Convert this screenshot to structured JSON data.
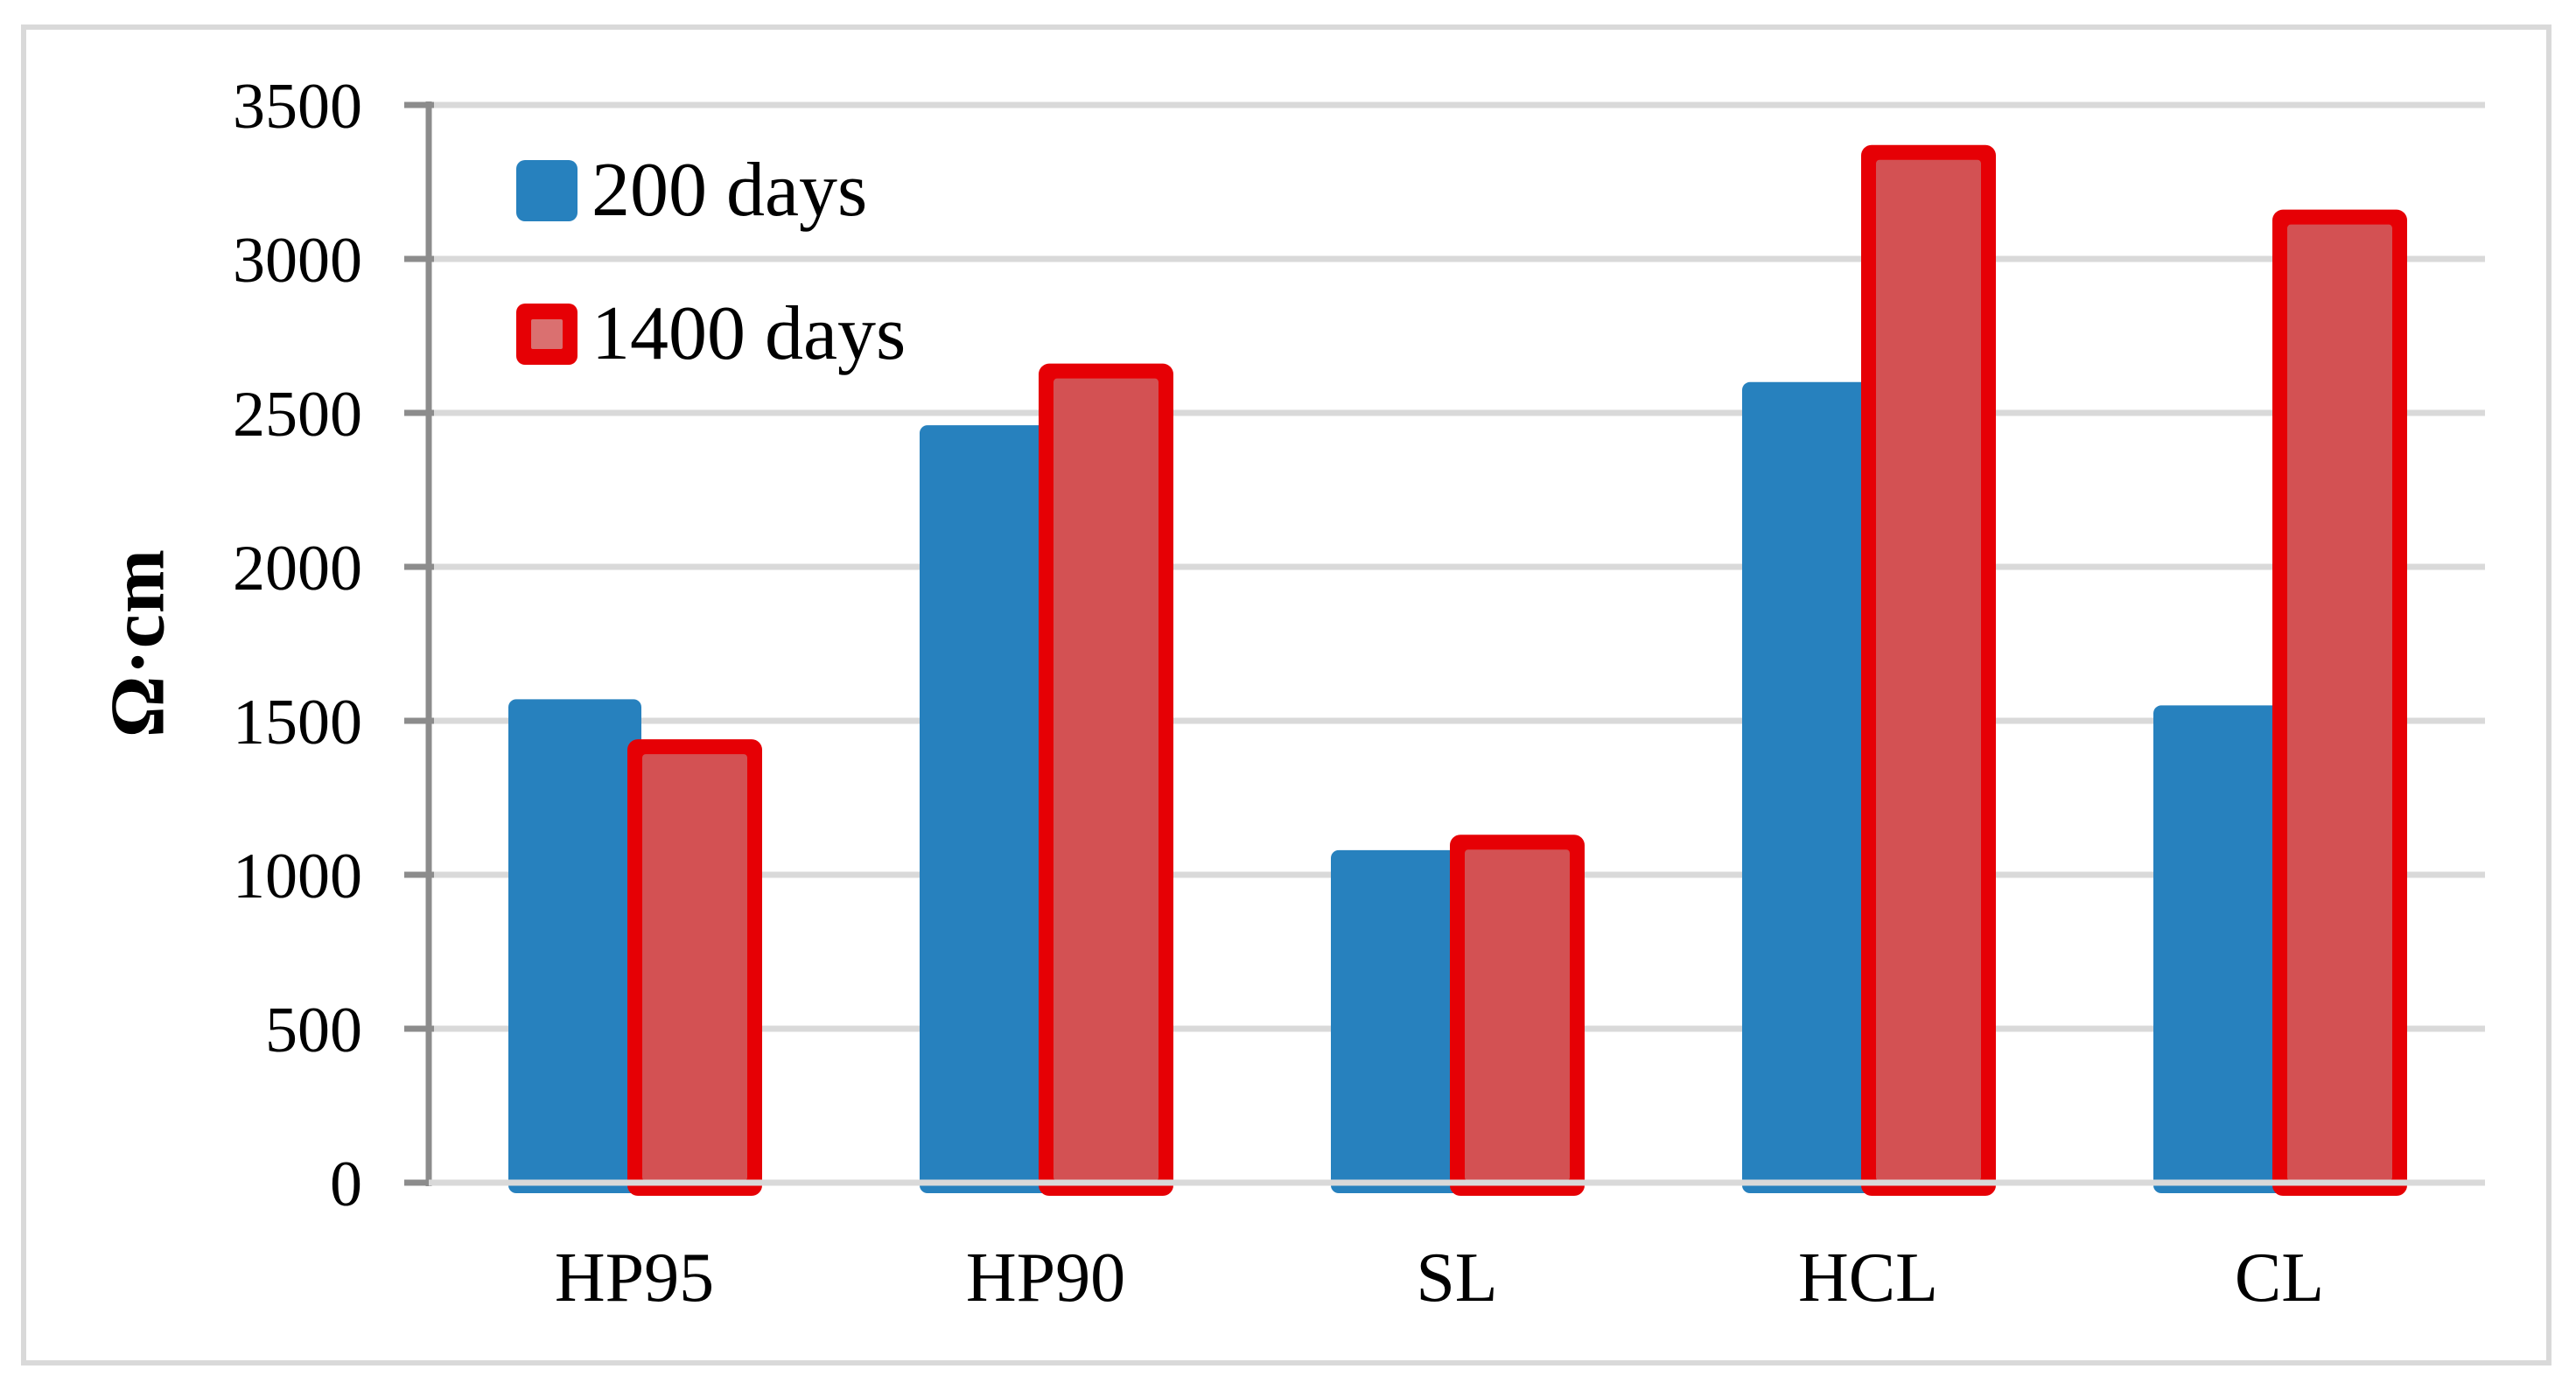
{
  "chart_data": {
    "type": "bar",
    "title": "",
    "xlabel": "",
    "ylabel": "Ω·cm",
    "categories": [
      "HP95",
      "HP90",
      "SL",
      "HCL",
      "CL"
    ],
    "series": [
      {
        "name": "200 days",
        "values": [
          1570,
          2460,
          1080,
          2600,
          1550
        ],
        "fill": "#2781BE"
      },
      {
        "name": "1400 days",
        "values": [
          1440,
          2660,
          1130,
          3370,
          3160
        ],
        "fill": "#D35153",
        "border": "#E60005",
        "legend_inner_fill": "#DA7070"
      }
    ],
    "ylim": [
      0,
      3500
    ],
    "ytick_step": 500,
    "yticks": [
      0,
      500,
      1000,
      1500,
      2000,
      2500,
      3000,
      3500
    ],
    "grid": true,
    "legend_position": "top-left",
    "colors": {
      "gridline": "#D9D9D9",
      "axis": "#8C8C8C",
      "frame": "#D9D9D9",
      "text": "#000000",
      "background": "#FFFFFF"
    }
  }
}
